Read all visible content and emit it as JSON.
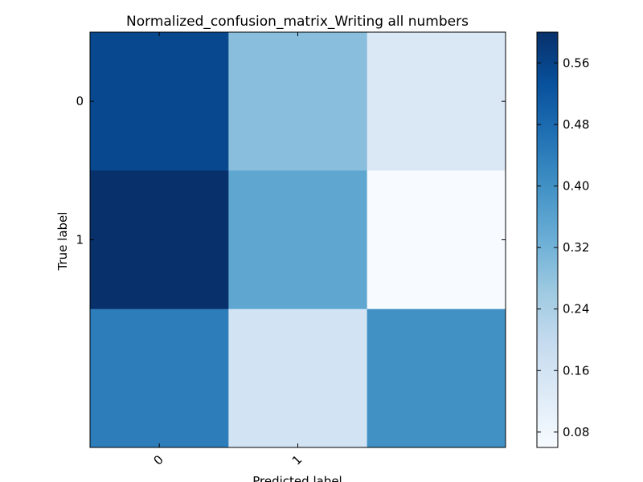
{
  "chart_data": {
    "type": "heatmap",
    "title": "Normalized_confusion_matrix_Writing all numbers",
    "xlabel": "Predicted label",
    "ylabel": "True label",
    "x_tick_labels": [
      "0",
      "1"
    ],
    "y_tick_labels": [
      "0",
      "1"
    ],
    "rows": 3,
    "cols": 3,
    "values": [
      [
        0.55,
        0.29,
        0.14
      ],
      [
        0.6,
        0.35,
        0.06
      ],
      [
        0.44,
        0.16,
        0.4
      ]
    ],
    "colormap": "Blues",
    "colorbar": {
      "vmin": 0.06,
      "vmax": 0.6,
      "ticks": [
        0.08,
        0.16,
        0.24,
        0.32,
        0.4,
        0.48,
        0.56
      ],
      "tick_labels": [
        "0.08",
        "0.16",
        "0.24",
        "0.32",
        "0.40",
        "0.48",
        "0.56"
      ]
    },
    "grid": false
  }
}
